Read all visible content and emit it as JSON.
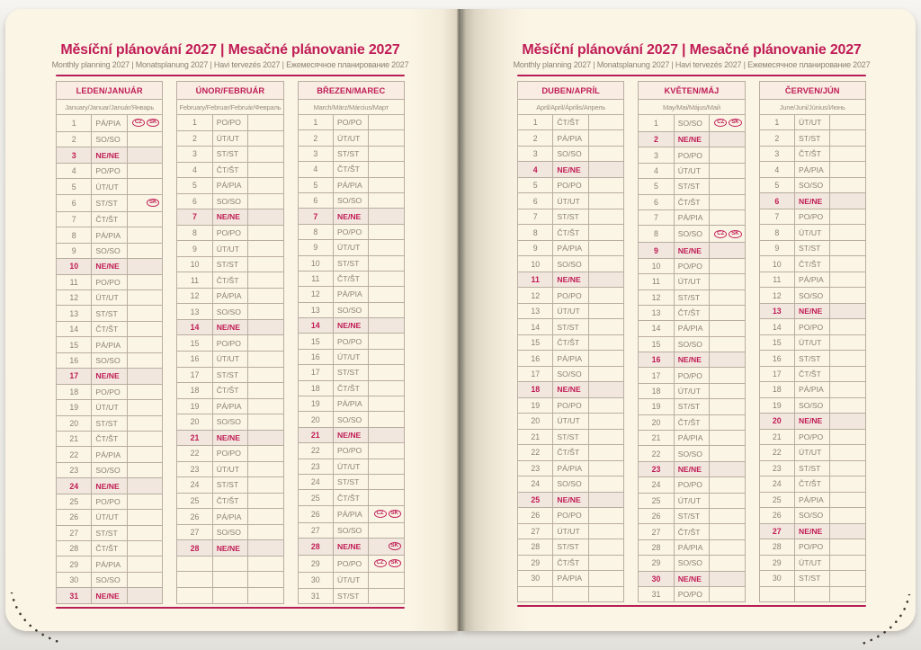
{
  "header": {
    "title": "Měsíční plánování 2027 | Mesačné plánovanie 2027",
    "subtitle": "Monthly planning 2027 | Monatsplanung 2027 | Havi tervezés 2027 | Ежемесячное планирование 2027"
  },
  "legend": {
    "sunday_weekday": "NE/NE",
    "holiday_country_codes": [
      "CZ",
      "SK"
    ]
  },
  "colors": {
    "accent_magenta": "#c01d56",
    "page_cream": "#fbf5e6",
    "sunday_row_bg": "#f2e7de",
    "month_header_bg": "#f8ece3",
    "day_text": "#8b8173",
    "table_border": "#b9ad9f"
  },
  "rows_per_month": 31,
  "pages": [
    {
      "months": [
        {
          "name": "LEDEN/JANUÁR",
          "subtitle": "January/Januar/Január/Январь",
          "weekdays": [
            "PÁ/PIA",
            "SO/SO",
            "NE/NE",
            "PO/PO",
            "ÚT/UT",
            "ST/ST",
            "ČT/ŠT",
            "PÁ/PIA",
            "SO/SO",
            "NE/NE",
            "PO/PO",
            "ÚT/UT",
            "ST/ST",
            "ČT/ŠT",
            "PÁ/PIA",
            "SO/SO",
            "NE/NE",
            "PO/PO",
            "ÚT/UT",
            "ST/ST",
            "ČT/ŠT",
            "PÁ/PIA",
            "SO/SO",
            "NE/NE",
            "PO/PO",
            "ÚT/UT",
            "ST/ST",
            "ČT/ŠT",
            "PÁ/PIA",
            "SO/SO",
            "NE/NE"
          ],
          "holidays": {
            "1": [
              "CZ",
              "SK"
            ],
            "6": [
              "SK"
            ]
          }
        },
        {
          "name": "ÚNOR/FEBRUÁR",
          "subtitle": "February/Februar/Február/Февраль",
          "weekdays": [
            "PO/PO",
            "ÚT/UT",
            "ST/ST",
            "ČT/ŠT",
            "PÁ/PIA",
            "SO/SO",
            "NE/NE",
            "PO/PO",
            "ÚT/UT",
            "ST/ST",
            "ČT/ŠT",
            "PÁ/PIA",
            "SO/SO",
            "NE/NE",
            "PO/PO",
            "ÚT/UT",
            "ST/ST",
            "ČT/ŠT",
            "PÁ/PIA",
            "SO/SO",
            "NE/NE",
            "PO/PO",
            "ÚT/UT",
            "ST/ST",
            "ČT/ŠT",
            "PÁ/PIA",
            "SO/SO",
            "NE/NE"
          ],
          "holidays": {}
        },
        {
          "name": "BŘEZEN/MAREC",
          "subtitle": "March/März/Március/Март",
          "weekdays": [
            "PO/PO",
            "ÚT/UT",
            "ST/ST",
            "ČT/ŠT",
            "PÁ/PIA",
            "SO/SO",
            "NE/NE",
            "PO/PO",
            "ÚT/UT",
            "ST/ST",
            "ČT/ŠT",
            "PÁ/PIA",
            "SO/SO",
            "NE/NE",
            "PO/PO",
            "ÚT/UT",
            "ST/ST",
            "ČT/ŠT",
            "PÁ/PIA",
            "SO/SO",
            "NE/NE",
            "PO/PO",
            "ÚT/UT",
            "ST/ST",
            "ČT/ŠT",
            "PÁ/PIA",
            "SO/SO",
            "NE/NE",
            "PO/PO",
            "ÚT/UT",
            "ST/ST"
          ],
          "holidays": {
            "26": [
              "CZ",
              "SK"
            ],
            "28": [
              "SK"
            ],
            "29": [
              "CZ",
              "SK"
            ]
          }
        }
      ]
    },
    {
      "months": [
        {
          "name": "DUBEN/APRÍL",
          "subtitle": "April/April/Április/Апрель",
          "weekdays": [
            "ČT/ŠT",
            "PÁ/PIA",
            "SO/SO",
            "NE/NE",
            "PO/PO",
            "ÚT/UT",
            "ST/ST",
            "ČT/ŠT",
            "PÁ/PIA",
            "SO/SO",
            "NE/NE",
            "PO/PO",
            "ÚT/UT",
            "ST/ST",
            "ČT/ŠT",
            "PÁ/PIA",
            "SO/SO",
            "NE/NE",
            "PO/PO",
            "ÚT/UT",
            "ST/ST",
            "ČT/ŠT",
            "PÁ/PIA",
            "SO/SO",
            "NE/NE",
            "PO/PO",
            "ÚT/UT",
            "ST/ST",
            "ČT/ŠT",
            "PÁ/PIA"
          ],
          "holidays": {}
        },
        {
          "name": "KVĚTEN/MÁJ",
          "subtitle": "May/Mai/Május/Май",
          "weekdays": [
            "SO/SO",
            "NE/NE",
            "PO/PO",
            "ÚT/UT",
            "ST/ST",
            "ČT/ŠT",
            "PÁ/PIA",
            "SO/SO",
            "NE/NE",
            "PO/PO",
            "ÚT/UT",
            "ST/ST",
            "ČT/ŠT",
            "PÁ/PIA",
            "SO/SO",
            "NE/NE",
            "PO/PO",
            "ÚT/UT",
            "ST/ST",
            "ČT/ŠT",
            "PÁ/PIA",
            "SO/SO",
            "NE/NE",
            "PO/PO",
            "ÚT/UT",
            "ST/ST",
            "ČT/ŠT",
            "PÁ/PIA",
            "SO/SO",
            "NE/NE",
            "PO/PO"
          ],
          "holidays": {
            "1": [
              "CZ",
              "SK"
            ],
            "8": [
              "CZ",
              "SK"
            ]
          }
        },
        {
          "name": "ČERVEN/JÚN",
          "subtitle": "June/Juni/Június/Июнь",
          "weekdays": [
            "ÚT/UT",
            "ST/ST",
            "ČT/ŠT",
            "PÁ/PIA",
            "SO/SO",
            "NE/NE",
            "PO/PO",
            "ÚT/UT",
            "ST/ST",
            "ČT/ŠT",
            "PÁ/PIA",
            "SO/SO",
            "NE/NE",
            "PO/PO",
            "ÚT/UT",
            "ST/ST",
            "ČT/ŠT",
            "PÁ/PIA",
            "SO/SO",
            "NE/NE",
            "PO/PO",
            "ÚT/UT",
            "ST/ST",
            "ČT/ŠT",
            "PÁ/PIA",
            "SO/SO",
            "NE/NE",
            "PO/PO",
            "ÚT/UT",
            "ST/ST"
          ],
          "holidays": {}
        }
      ]
    }
  ]
}
